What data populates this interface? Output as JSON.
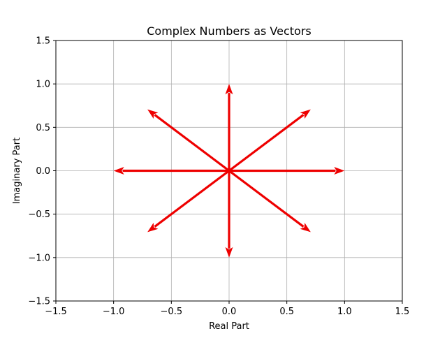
{
  "chart_data": {
    "type": "quiver",
    "title": "Complex Numbers as Vectors",
    "xlabel": "Real Part",
    "ylabel": "Imaginary Part",
    "xlim": [
      -1.5,
      1.5
    ],
    "ylim": [
      -1.5,
      1.5
    ],
    "xticks": [
      -1.5,
      -1.0,
      -0.5,
      0.0,
      0.5,
      1.0,
      1.5
    ],
    "yticks": [
      -1.5,
      -1.0,
      -0.5,
      0.0,
      0.5,
      1.0,
      1.5
    ],
    "xtick_labels": [
      "−1.5",
      "−1.0",
      "−0.5",
      "0.0",
      "0.5",
      "1.0",
      "1.5"
    ],
    "ytick_labels": [
      "−1.5",
      "−1.0",
      "−0.5",
      "0.0",
      "0.5",
      "1.0",
      "1.5"
    ],
    "grid": true,
    "color": "#ee0000",
    "vectors": [
      {
        "x0": 0,
        "y0": 0,
        "x": 1.0,
        "y": 0.0
      },
      {
        "x0": 0,
        "y0": 0,
        "x": 0.707,
        "y": 0.707
      },
      {
        "x0": 0,
        "y0": 0,
        "x": 0.0,
        "y": 1.0
      },
      {
        "x0": 0,
        "y0": 0,
        "x": -0.707,
        "y": 0.707
      },
      {
        "x0": 0,
        "y0": 0,
        "x": -1.0,
        "y": 0.0
      },
      {
        "x0": 0,
        "y0": 0,
        "x": -0.707,
        "y": -0.707
      },
      {
        "x0": 0,
        "y0": 0,
        "x": 0.0,
        "y": -1.0
      },
      {
        "x0": 0,
        "y0": 0,
        "x": 0.707,
        "y": -0.707
      }
    ]
  }
}
